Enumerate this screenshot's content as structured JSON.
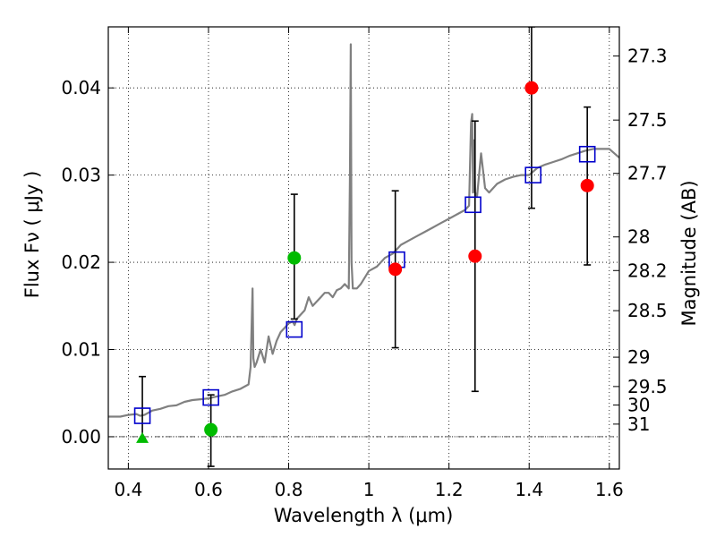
{
  "chart_data": {
    "type": "scatter",
    "xlabel": "Wavelength  λ (μm)",
    "ylabel": "Flux  Fν  ( μJy )",
    "ylabel_right": "Magnitude (AB)",
    "xlim": [
      0.35,
      1.625
    ],
    "ylim": [
      -0.0037,
      0.047
    ],
    "grid": true,
    "x_ticks": [
      0.4,
      0.6,
      0.8,
      1.0,
      1.2,
      1.4,
      1.6
    ],
    "x_tick_labels": [
      "0.4",
      "0.6",
      "0.8",
      "1",
      "1.2",
      "1.4",
      "1.6"
    ],
    "y_ticks": [
      0.0,
      0.01,
      0.02,
      0.03,
      0.04
    ],
    "y_tick_labels": [
      "0.00",
      "0.01",
      "0.02",
      "0.03",
      "0.04"
    ],
    "mag_ticks": [
      27.3,
      27.5,
      27.7,
      28,
      28.2,
      28.5,
      29,
      29.5,
      30,
      31
    ],
    "mag_tick_labels": [
      "27.3",
      "27.5",
      "27.7",
      "28",
      "28.2",
      "28.5",
      "29",
      "29.5",
      "30",
      "31"
    ],
    "series": [
      {
        "marker": "line",
        "color": "#808080",
        "x": [
          0.35,
          0.38,
          0.4,
          0.42,
          0.43,
          0.44,
          0.46,
          0.48,
          0.5,
          0.52,
          0.54,
          0.56,
          0.58,
          0.6,
          0.62,
          0.64,
          0.66,
          0.68,
          0.7,
          0.705,
          0.71,
          0.712,
          0.715,
          0.72,
          0.73,
          0.74,
          0.75,
          0.76,
          0.77,
          0.78,
          0.79,
          0.8,
          0.81,
          0.815,
          0.82,
          0.83,
          0.84,
          0.85,
          0.86,
          0.87,
          0.88,
          0.89,
          0.9,
          0.91,
          0.92,
          0.93,
          0.94,
          0.95,
          0.953,
          0.955,
          0.957,
          0.96,
          0.97,
          0.98,
          1.0,
          1.02,
          1.04,
          1.06,
          1.08,
          1.1,
          1.12,
          1.14,
          1.16,
          1.18,
          1.2,
          1.22,
          1.24,
          1.25,
          1.255,
          1.258,
          1.26,
          1.262,
          1.265,
          1.27,
          1.28,
          1.29,
          1.3,
          1.32,
          1.34,
          1.36,
          1.38,
          1.4,
          1.42,
          1.44,
          1.46,
          1.48,
          1.5,
          1.52,
          1.54,
          1.56,
          1.58,
          1.6,
          1.625
        ],
        "y": [
          0.0023,
          0.0023,
          0.0025,
          0.0026,
          0.0024,
          0.0025,
          0.003,
          0.0032,
          0.0035,
          0.0036,
          0.004,
          0.0042,
          0.0043,
          0.0044,
          0.0046,
          0.0048,
          0.0052,
          0.0055,
          0.006,
          0.008,
          0.017,
          0.009,
          0.008,
          0.0085,
          0.01,
          0.0085,
          0.0115,
          0.0095,
          0.011,
          0.012,
          0.0125,
          0.013,
          0.0132,
          0.0128,
          0.0135,
          0.014,
          0.0145,
          0.016,
          0.015,
          0.0155,
          0.016,
          0.0165,
          0.0165,
          0.016,
          0.0168,
          0.017,
          0.0175,
          0.017,
          0.03,
          0.045,
          0.02,
          0.017,
          0.017,
          0.0175,
          0.019,
          0.0195,
          0.0205,
          0.021,
          0.022,
          0.0225,
          0.023,
          0.0235,
          0.024,
          0.0245,
          0.025,
          0.0255,
          0.026,
          0.0265,
          0.036,
          0.037,
          0.028,
          0.034,
          0.028,
          0.0275,
          0.0325,
          0.0285,
          0.028,
          0.029,
          0.0295,
          0.0298,
          0.03,
          0.03,
          0.0308,
          0.0312,
          0.0315,
          0.0318,
          0.0322,
          0.0325,
          0.0328,
          0.033,
          0.033,
          0.033,
          0.032
        ]
      },
      {
        "marker": "open-square",
        "color": "#0000cc",
        "x": [
          0.435,
          0.606,
          0.814,
          1.07,
          1.26,
          1.41,
          1.545
        ],
        "y": [
          0.0024,
          0.0045,
          0.0123,
          0.0203,
          0.0266,
          0.03,
          0.0324
        ]
      },
      {
        "marker": "circle",
        "color": "#ff0000",
        "x": [
          1.066,
          1.265,
          1.406,
          1.545
        ],
        "y": [
          0.0192,
          0.0207,
          0.04,
          0.0288
        ],
        "yerr": [
          [
            0.0102,
            0.0282
          ],
          [
            0.0052,
            0.0362
          ],
          [
            0.0262,
            0.047
          ],
          [
            0.0197,
            0.0378
          ]
        ]
      },
      {
        "marker": "circle",
        "color": "#00bb00",
        "x": [
          0.606,
          0.814
        ],
        "y": [
          0.0008,
          0.0205
        ],
        "yerr": [
          [
            -0.0034,
            0.0048
          ],
          [
            0.0135,
            0.0278
          ]
        ]
      },
      {
        "marker": "triangle",
        "color": "#00bb00",
        "x": [
          0.435
        ],
        "y": [
          -0.0002
        ],
        "yerr": [
          [
            -0.0002,
            0.0069
          ]
        ]
      }
    ]
  }
}
